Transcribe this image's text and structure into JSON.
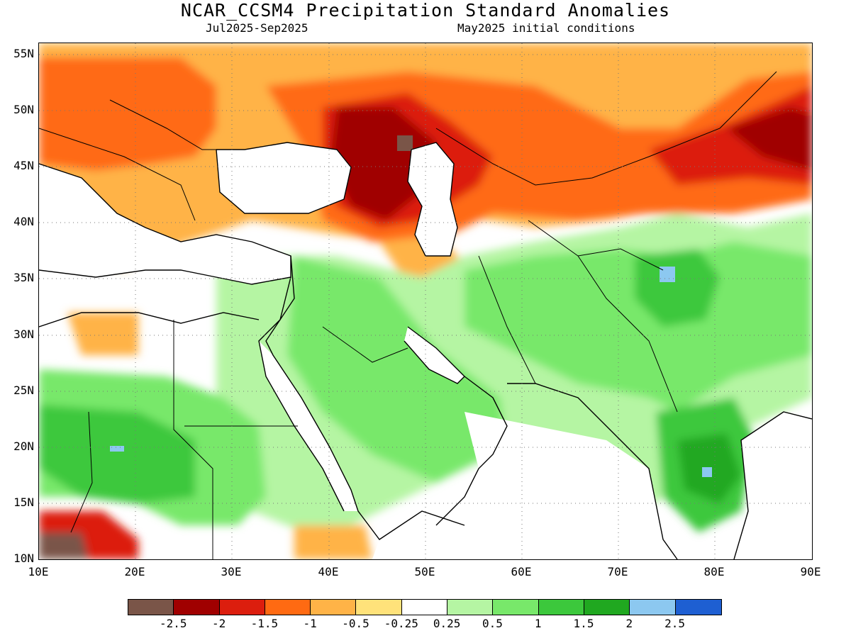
{
  "title": "NCAR_CCSM4 Precipitation Standard Anomalies",
  "subtitle_left": "Jul2025-Sep2025",
  "subtitle_right": "May2025 initial conditions",
  "lat_labels": [
    "55N",
    "50N",
    "45N",
    "40N",
    "35N",
    "30N",
    "25N",
    "20N",
    "15N",
    "10N"
  ],
  "lon_labels": [
    "10E",
    "20E",
    "30E",
    "40E",
    "50E",
    "60E",
    "70E",
    "80E",
    "90E"
  ],
  "colorbar": {
    "colors": [
      "#7a5548",
      "#a00000",
      "#dc1e0e",
      "#ff6a12",
      "#ffb347",
      "#ffe27a",
      "#ffffff",
      "#b5f5a3",
      "#78e86a",
      "#3cc83c",
      "#20a820",
      "#8cc8f0",
      "#1e5fd2"
    ],
    "labels": [
      "-2.5",
      "-2",
      "-1.5",
      "-1",
      "-0.5",
      "-0.25",
      "0.25",
      "0.5",
      "1",
      "1.5",
      "2",
      "2.5"
    ]
  },
  "map": {
    "lon_range": [
      10,
      90
    ],
    "lat_range": [
      10,
      56
    ],
    "grid": true,
    "anomaly_regions": [
      {
        "area": "Europe / Balkans",
        "anomaly": "-1 to -1.5",
        "color": "#ff6a12"
      },
      {
        "area": "Caucasus / Caspian / Kazakhstan",
        "anomaly": "-2",
        "color": "#a00000"
      },
      {
        "area": "Northern Caspian",
        "anomaly": "-2.5",
        "color": "#7a5548"
      },
      {
        "area": "Central Asia to Mongolia",
        "anomaly": "-1.5",
        "color": "#dc1e0e"
      },
      {
        "area": "Arabian Peninsula",
        "anomaly": "0.5 to 1",
        "color": "#78e86a"
      },
      {
        "area": "Pakistan / NW India",
        "anomaly": "1 to 1.5",
        "color": "#3cc83c"
      },
      {
        "area": "Kashmir",
        "anomaly": "2",
        "color": "#8cc8f0"
      },
      {
        "area": "Central India",
        "anomaly": "1.5 to 2",
        "color": "#20a820"
      },
      {
        "area": "Sahel / Chad",
        "anomaly": "1 to 1.5",
        "color": "#3cc83c"
      },
      {
        "area": "Lake Chad region",
        "anomaly": "-2.5",
        "color": "#7a5548"
      }
    ]
  }
}
